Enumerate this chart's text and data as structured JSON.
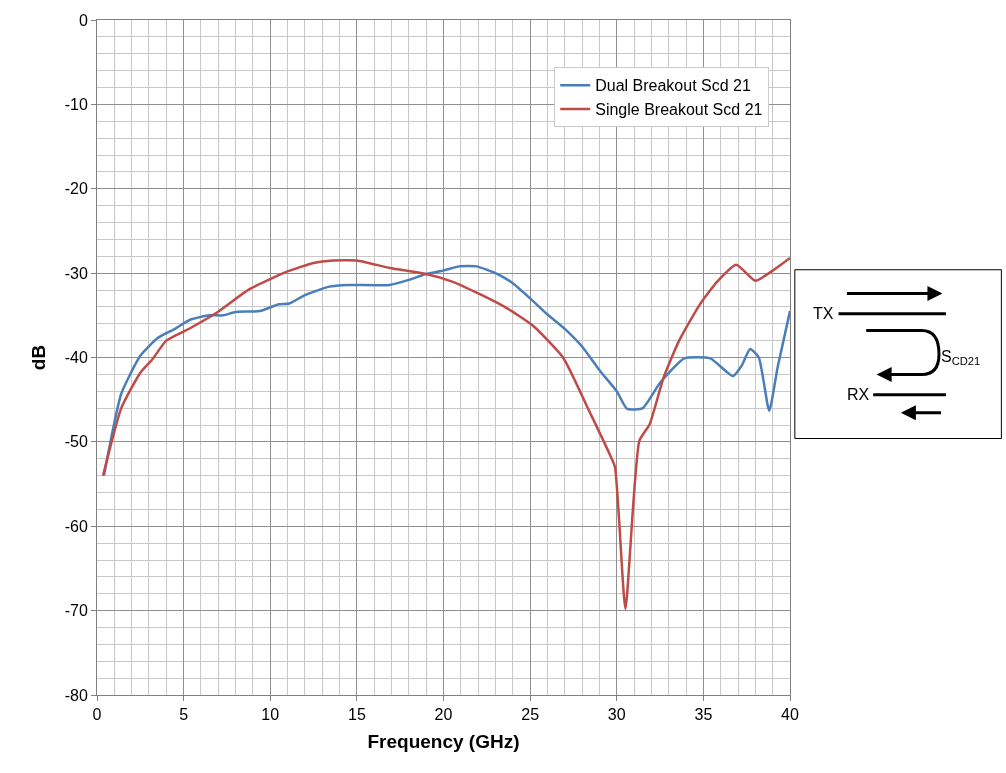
{
  "chart_data": {
    "type": "line",
    "xlabel": "Frequency (GHz)",
    "ylabel": "dB",
    "xlim": [
      0,
      40
    ],
    "xticks": [
      0,
      5,
      10,
      15,
      20,
      25,
      30,
      35,
      40
    ],
    "ylim": [
      -80,
      0
    ],
    "yticks": [
      -80,
      -70,
      -60,
      -50,
      -40,
      -30,
      -20,
      -10,
      0
    ],
    "grid": true,
    "legend": "top right",
    "line_style": "solid",
    "marker": "none",
    "series": [
      {
        "name": "Dual Breakout Scd 21",
        "color": "#4a7ebb",
        "x": [
          0.4,
          1.4,
          2.5,
          3.5,
          4.5,
          5.4,
          6.5,
          7.3,
          8,
          9.4,
          10.5,
          11.1,
          12,
          13.4,
          14.5,
          16.9,
          18,
          19,
          20,
          20.9,
          21.9,
          23,
          24,
          25,
          26,
          27,
          28,
          29,
          30,
          30.6,
          31.5,
          32.5,
          33.9,
          35.4,
          36.7,
          37.2,
          37.7,
          38.2,
          38.8,
          39.3,
          40
        ],
        "values": [
          -54,
          -44.3,
          -39.8,
          -37.7,
          -36.6,
          -35.5,
          -35,
          -35,
          -34.6,
          -34.5,
          -33.7,
          -33.6,
          -32.6,
          -31.6,
          -31.4,
          -31.4,
          -30.8,
          -30.1,
          -29.7,
          -29.2,
          -29.2,
          -30,
          -31.2,
          -33,
          -34.9,
          -36.6,
          -38.7,
          -41.5,
          -44,
          -46.1,
          -46,
          -43,
          -40.1,
          -40.1,
          -42.2,
          -41,
          -39,
          -40,
          -46.3,
          -41,
          -34.5
        ]
      },
      {
        "name": "Single Breakout Scd 21",
        "color": "#be4b48",
        "x": [
          0.35,
          1.4,
          2.5,
          3.2,
          4,
          5.4,
          6.9,
          8.8,
          11,
          12.5,
          13.6,
          15,
          16.9,
          19,
          20.5,
          22.1,
          23.7,
          25.2,
          26.9,
          28.4,
          29.6,
          29.9,
          30.5,
          31.3,
          31.9,
          32.7,
          33.6,
          34.8,
          35.8,
          36.9,
          38,
          39,
          40
        ],
        "values": [
          -54,
          -46,
          -41.8,
          -40.2,
          -38,
          -36.5,
          -34.7,
          -31.9,
          -29.8,
          -28.8,
          -28.5,
          -28.5,
          -29.4,
          -30.1,
          -31,
          -32.5,
          -34.2,
          -36.3,
          -40,
          -46.3,
          -51.5,
          -53,
          -69.8,
          -49.9,
          -47.9,
          -42.4,
          -38,
          -33.7,
          -31,
          -29,
          -30.9,
          -29.7,
          -28.2
        ]
      }
    ],
    "annotations": [
      "TX",
      "RX",
      "S$_{CD21}$"
    ]
  }
}
